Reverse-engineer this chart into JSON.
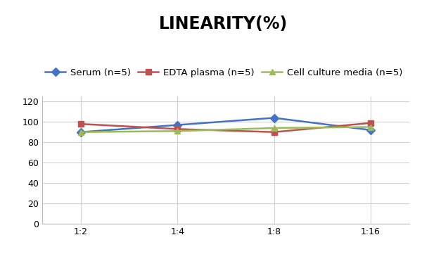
{
  "title": "LINEARITY(%)",
  "x_labels": [
    "1:2",
    "1:4",
    "1:8",
    "1:16"
  ],
  "series": [
    {
      "label": "Serum (n=5)",
      "values": [
        90,
        97,
        104,
        92
      ],
      "color": "#4472C4",
      "marker": "D",
      "marker_size": 6,
      "linewidth": 1.8
    },
    {
      "label": "EDTA plasma (n=5)",
      "values": [
        98,
        93,
        90,
        99
      ],
      "color": "#C0504D",
      "marker": "s",
      "marker_size": 6,
      "linewidth": 1.8
    },
    {
      "label": "Cell culture media (n=5)",
      "values": [
        90,
        91,
        94,
        95
      ],
      "color": "#9BBB59",
      "marker": "^",
      "marker_size": 6,
      "linewidth": 1.8
    }
  ],
  "ylim": [
    0,
    125
  ],
  "yticks": [
    0,
    20,
    40,
    60,
    80,
    100,
    120
  ],
  "background_color": "#ffffff",
  "grid_color": "#d0d0d0",
  "title_fontsize": 17,
  "legend_fontsize": 9.5,
  "tick_fontsize": 9
}
